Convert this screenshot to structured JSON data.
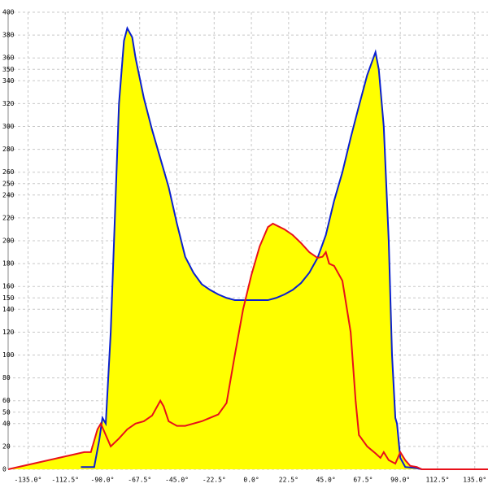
{
  "chart_data": {
    "type": "area",
    "xlim": [
      -147,
      143
    ],
    "ylim": [
      0,
      400
    ],
    "xticks": [
      {
        "value": -135,
        "label": "-135.0°"
      },
      {
        "value": -112.5,
        "label": "-112.5°"
      },
      {
        "value": -90,
        "label": "-90.0°"
      },
      {
        "value": -67.5,
        "label": "-67.5°"
      },
      {
        "value": -45,
        "label": "-45.0°"
      },
      {
        "value": -22.5,
        "label": "-22.5°"
      },
      {
        "value": 0,
        "label": "0.0°"
      },
      {
        "value": 22.5,
        "label": "22.5°"
      },
      {
        "value": 45,
        "label": "45.0°"
      },
      {
        "value": 67.5,
        "label": "67.5°"
      },
      {
        "value": 90,
        "label": "90.0°"
      },
      {
        "value": 112.5,
        "label": "112.5°"
      },
      {
        "value": 135,
        "label": "135.0°"
      }
    ],
    "yticks": [
      0,
      20,
      40,
      50,
      60,
      80,
      100,
      120,
      140,
      150,
      160,
      180,
      200,
      220,
      240,
      250,
      260,
      280,
      300,
      320,
      340,
      350,
      360,
      380,
      400
    ],
    "grid": true,
    "fill_color": "#ffff00",
    "series": [
      {
        "color": "#0a1fd0",
        "x": [
          -103,
          -95,
          -92,
          -90,
          -88,
          -85,
          -83,
          -80,
          -77,
          -75,
          -72,
          -70,
          -65,
          -60,
          -55,
          -50,
          -45,
          -40,
          -35,
          -30,
          -25,
          -20,
          -15,
          -10,
          0,
          10,
          15,
          20,
          25,
          30,
          35,
          40,
          45,
          50,
          55,
          60,
          65,
          70,
          75,
          77,
          80,
          83,
          85,
          87,
          88,
          90,
          93,
          100,
          103
        ],
        "values": [
          2,
          2,
          25,
          45,
          40,
          120,
          200,
          320,
          375,
          386,
          378,
          360,
          325,
          297,
          272,
          247,
          215,
          186,
          172,
          162,
          157,
          153,
          150,
          148,
          148,
          148,
          150,
          153,
          157,
          163,
          172,
          185,
          205,
          235,
          260,
          290,
          318,
          345,
          365,
          350,
          300,
          200,
          100,
          45,
          40,
          10,
          2,
          1,
          0
        ]
      },
      {
        "color": "#e8101a",
        "x": [
          -147,
          -101,
          -97,
          -93,
          -91,
          -88,
          -85,
          -80,
          -75,
          -70,
          -65,
          -60,
          -55,
          -53,
          -50,
          -45,
          -40,
          -30,
          -20,
          -15,
          -10,
          -5,
          0,
          5,
          10,
          13,
          20,
          25,
          30,
          35,
          40,
          43,
          45,
          47,
          50,
          55,
          60,
          63,
          65,
          70,
          75,
          78,
          80,
          83,
          87,
          90,
          93,
          96,
          100,
          103,
          143
        ],
        "values": [
          0,
          15,
          15,
          35,
          40,
          30,
          20,
          27,
          35,
          40,
          42,
          47,
          60,
          55,
          42,
          38,
          38,
          42,
          48,
          58,
          100,
          140,
          170,
          195,
          212,
          215,
          210,
          205,
          198,
          190,
          185,
          186,
          190,
          180,
          178,
          165,
          120,
          60,
          30,
          20,
          14,
          10,
          15,
          8,
          5,
          15,
          8,
          3,
          2,
          0,
          0
        ]
      }
    ]
  }
}
